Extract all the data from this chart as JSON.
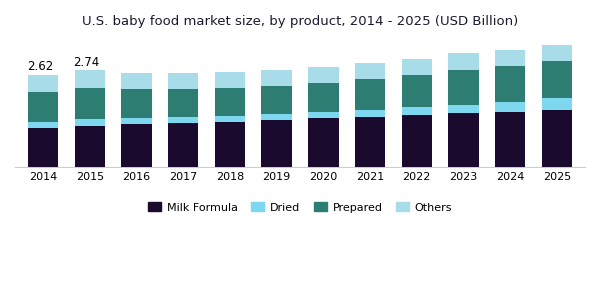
{
  "title": "U.S. baby food market size, by product, 2014 - 2025 (USD Billion)",
  "years": [
    2014,
    2015,
    2016,
    2017,
    2018,
    2019,
    2020,
    2021,
    2022,
    2023,
    2024,
    2025
  ],
  "milk_formula": [
    1.1,
    1.16,
    1.2,
    1.24,
    1.28,
    1.33,
    1.38,
    1.42,
    1.47,
    1.52,
    1.57,
    1.62
  ],
  "dried": [
    0.18,
    0.19,
    0.18,
    0.17,
    0.17,
    0.18,
    0.19,
    0.2,
    0.22,
    0.24,
    0.28,
    0.34
  ],
  "prepared": [
    0.85,
    0.88,
    0.82,
    0.8,
    0.78,
    0.78,
    0.82,
    0.87,
    0.92,
    1.0,
    1.02,
    1.05
  ],
  "others": [
    0.49,
    0.51,
    0.48,
    0.47,
    0.46,
    0.47,
    0.46,
    0.46,
    0.47,
    0.47,
    0.46,
    0.46
  ],
  "annotations": {
    "idx_2014": 0,
    "idx_2015": 1,
    "val_2014": "2.62",
    "val_2015": "2.74"
  },
  "colors": {
    "milk_formula": "#1a0a2e",
    "dried": "#7dd8ef",
    "prepared": "#2e7d72",
    "others": "#a8dce8"
  },
  "background_color": "#ffffff",
  "ylim": [
    0,
    3.8
  ],
  "bar_width": 0.65
}
